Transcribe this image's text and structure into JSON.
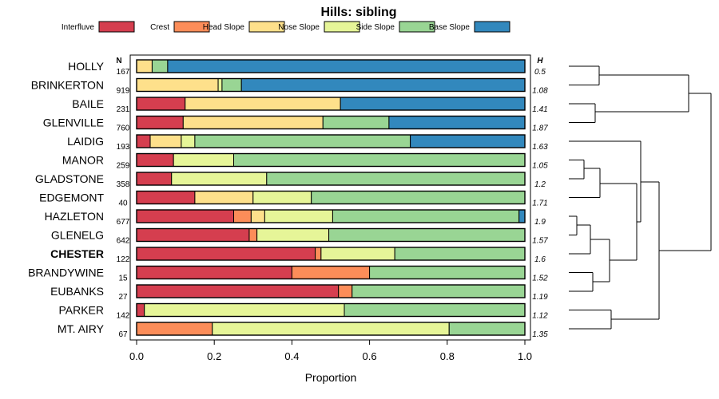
{
  "chart_data": {
    "type": "bar",
    "orientation": "horizontal-stacked",
    "title": "Hills: sibling",
    "xlabel": "Proportion",
    "xlim": [
      0,
      1
    ],
    "xticks": [
      "0.0",
      "0.2",
      "0.4",
      "0.6",
      "0.8",
      "1.0"
    ],
    "n_header": "N",
    "h_header": "H",
    "categories": [
      {
        "name": "Interfluve",
        "color": "#D53E4F"
      },
      {
        "name": "Crest",
        "color": "#FC8D59"
      },
      {
        "name": "Head Slope",
        "color": "#FEE08B"
      },
      {
        "name": "Nose Slope",
        "color": "#E6F598"
      },
      {
        "name": "Side Slope",
        "color": "#99D594"
      },
      {
        "name": "Base Slope",
        "color": "#3288BD"
      }
    ],
    "rows": [
      {
        "label": "HOLLY",
        "n": "167",
        "h": "0.5",
        "bold": false,
        "values": [
          0,
          0,
          0.04,
          0,
          0.04,
          0.92
        ]
      },
      {
        "label": "BRINKERTON",
        "n": "919",
        "h": "1.08",
        "bold": false,
        "values": [
          0,
          0,
          0.21,
          0.01,
          0.05,
          0.73
        ]
      },
      {
        "label": "BAILE",
        "n": "231",
        "h": "1.41",
        "bold": false,
        "values": [
          0.125,
          0,
          0.4,
          0,
          0,
          0.475
        ]
      },
      {
        "label": "GLENVILLE",
        "n": "760",
        "h": "1.87",
        "bold": false,
        "values": [
          0.12,
          0,
          0.36,
          0,
          0.17,
          0.35
        ]
      },
      {
        "label": "LAIDIG",
        "n": "193",
        "h": "1.63",
        "bold": false,
        "values": [
          0.035,
          0,
          0.08,
          0.035,
          0.555,
          0.295
        ]
      },
      {
        "label": "MANOR",
        "n": "259",
        "h": "1.05",
        "bold": false,
        "values": [
          0.095,
          0,
          0,
          0.155,
          0.75,
          0
        ]
      },
      {
        "label": "GLADSTONE",
        "n": "358",
        "h": "1.2",
        "bold": false,
        "values": [
          0.09,
          0,
          0,
          0.245,
          0.665,
          0
        ]
      },
      {
        "label": "EDGEMONT",
        "n": "40",
        "h": "1.71",
        "bold": false,
        "values": [
          0.15,
          0,
          0.15,
          0.15,
          0.55,
          0
        ]
      },
      {
        "label": "HAZLETON",
        "n": "677",
        "h": "1.9",
        "bold": false,
        "values": [
          0.25,
          0.045,
          0.035,
          0.175,
          0.48,
          0.015
        ]
      },
      {
        "label": "GLENELG",
        "n": "642",
        "h": "1.57",
        "bold": false,
        "values": [
          0.29,
          0.02,
          0,
          0.185,
          0.505,
          0
        ]
      },
      {
        "label": "CHESTER",
        "n": "122",
        "h": "1.6",
        "bold": true,
        "values": [
          0.46,
          0.015,
          0,
          0.19,
          0.335,
          0
        ]
      },
      {
        "label": "BRANDYWINE",
        "n": "15",
        "h": "1.52",
        "bold": false,
        "values": [
          0.4,
          0.2,
          0,
          0,
          0.4,
          0
        ]
      },
      {
        "label": "EUBANKS",
        "n": "27",
        "h": "1.19",
        "bold": false,
        "values": [
          0.52,
          0.035,
          0,
          0,
          0.445,
          0
        ]
      },
      {
        "label": "PARKER",
        "n": "142",
        "h": "1.12",
        "bold": false,
        "values": [
          0.02,
          0,
          0,
          0.515,
          0.465,
          0
        ]
      },
      {
        "label": "MT. AIRY",
        "n": "67",
        "h": "1.35",
        "bold": false,
        "values": [
          0,
          0.195,
          0,
          0.61,
          0.195,
          0
        ]
      }
    ]
  }
}
